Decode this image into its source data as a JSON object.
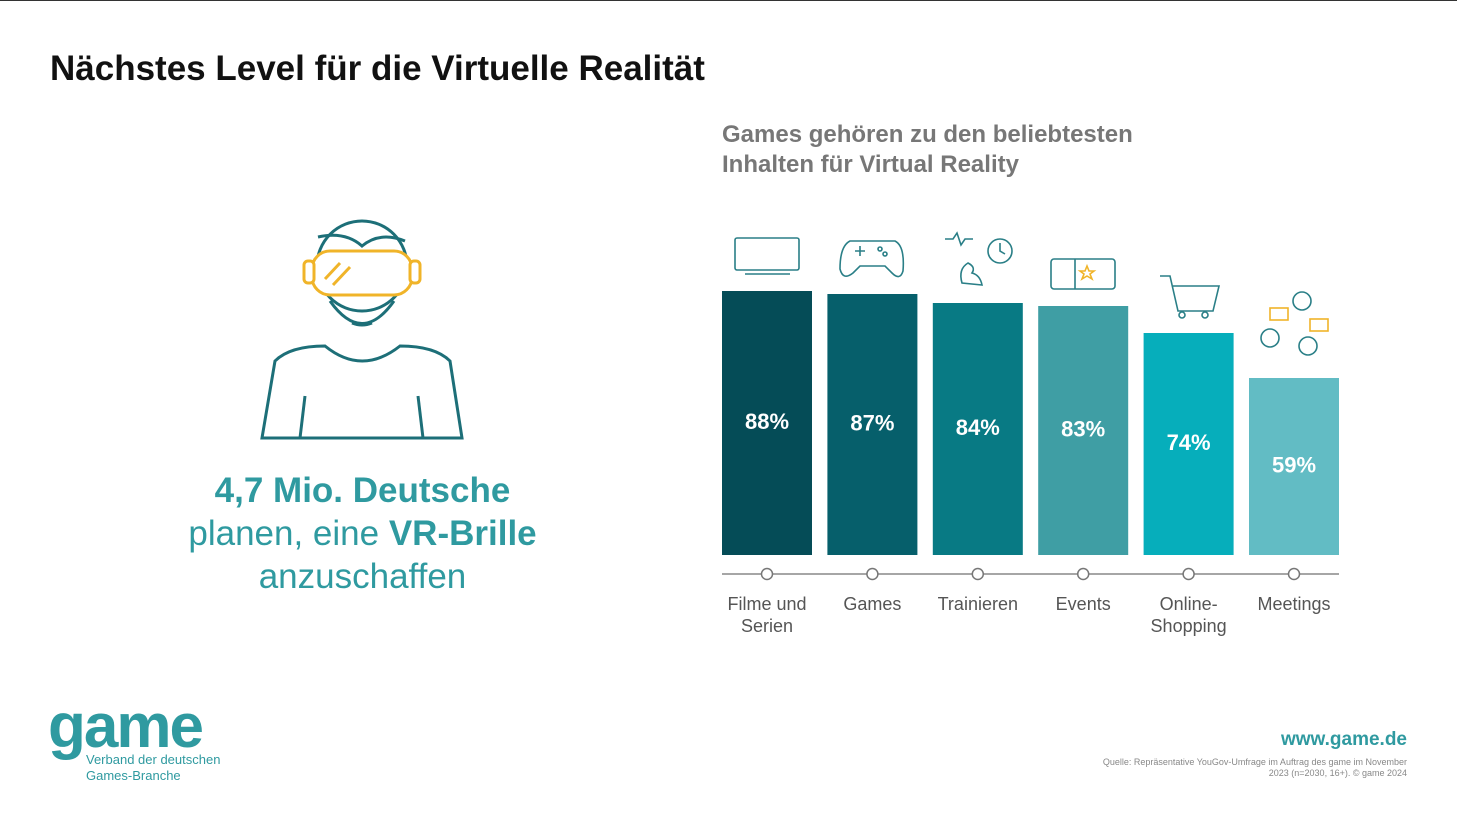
{
  "header": {
    "title": "Nächstes Level für die Virtuelle Realität"
  },
  "highlight": {
    "line1": "4,7 Mio. Deutsche",
    "line2_start": "planen, eine",
    "line2_bold": "VR-Brille",
    "line3": "anzuschaffen"
  },
  "chart_data": {
    "type": "bar",
    "subtitle": [
      "Games gehören zu den beliebtesten",
      "Inhalten für Virtual Reality"
    ],
    "categories": [
      "Filme und Serien",
      "Games",
      "Trainieren",
      "Events",
      "Online-Shopping",
      "Meetings"
    ],
    "values": [
      88,
      87,
      84,
      83,
      74,
      59
    ],
    "value_labels": [
      "88%",
      "87%",
      "84%",
      "83%",
      "74%",
      "59%"
    ],
    "colors": [
      "#054c57",
      "#065f6b",
      "#087a84",
      "#3f9ea4",
      "#06aebb",
      "#62bcc4"
    ]
  },
  "footer": {
    "logo": "game",
    "org_line1": "Verband der deutschen",
    "org_line2": "Games-Branche",
    "url": "www.game.de",
    "source": "Quelle: Repräsentative YouGov-Umfrage im Auftrag des game im November 2023 (n=2030, 16+). © game 2024"
  }
}
